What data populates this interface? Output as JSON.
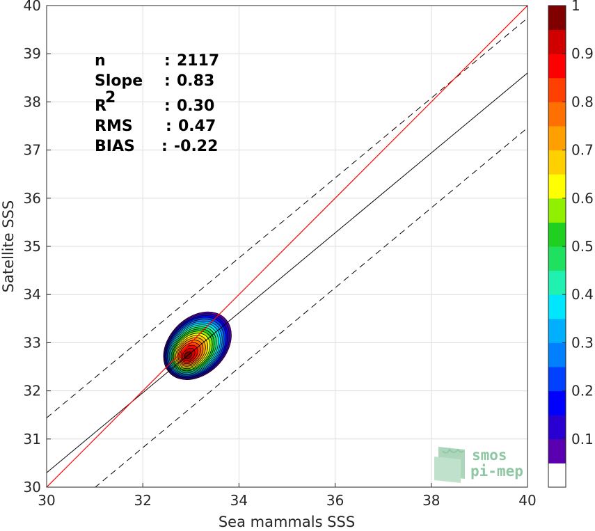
{
  "chart_data": {
    "type": "density-contour",
    "xlabel": "Sea mammals SSS",
    "ylabel": "Satellite SSS",
    "xlim": [
      30,
      40
    ],
    "ylim": [
      30,
      40
    ],
    "x_ticks": [
      "30",
      "32",
      "34",
      "36",
      "38",
      "40"
    ],
    "y_ticks": [
      "30",
      "31",
      "32",
      "33",
      "34",
      "35",
      "36",
      "37",
      "38",
      "39",
      "40"
    ],
    "grid": true,
    "stats": [
      {
        "label": "n",
        "sep": ": ",
        "value": "2117",
        "sup": ""
      },
      {
        "label": "Slope",
        "sep": ": ",
        "value": "0.83",
        "sup": ""
      },
      {
        "label": "R",
        "sup": "2",
        "sep": ": ",
        "value": "0.30"
      },
      {
        "label": "RMS",
        "sep": ": ",
        "value": "0.47",
        "sup": ""
      },
      {
        "label": "BIAS",
        "sep": ": ",
        "value": "-0.22",
        "sup": ""
      }
    ],
    "reference_line": {
      "slope": 1,
      "intercept": 0,
      "color": "#ff0000"
    },
    "fit_line": {
      "slope": 0.83,
      "intercept": 5.4,
      "color": "#000000"
    },
    "envelope_lines": [
      {
        "slope": 0.83,
        "intercept": 6.54,
        "style": "dashed"
      },
      {
        "slope": 0.83,
        "intercept": 4.26,
        "style": "dashed"
      }
    ],
    "density_peak": {
      "x": 33.0,
      "y": 32.8
    },
    "contour_levels": [
      0.05,
      0.1,
      0.15,
      0.2,
      0.25,
      0.3,
      0.35,
      0.4,
      0.45,
      0.5,
      0.55,
      0.6,
      0.65,
      0.7,
      0.75,
      0.8,
      0.85,
      0.9,
      0.95
    ],
    "colorbar": {
      "min": 0,
      "max": 1,
      "tick_labels": [
        "0.1",
        "0.2",
        "0.3",
        "0.4",
        "0.5",
        "0.6",
        "0.7",
        "0.8",
        "0.9",
        "1"
      ],
      "colors": [
        "#ffffff",
        "#5b00b0",
        "#2a00d0",
        "#0000ff",
        "#0040ff",
        "#0080ff",
        "#00b0ff",
        "#00e6ff",
        "#20f0b0",
        "#20e060",
        "#20d020",
        "#90f000",
        "#ffff00",
        "#ffd000",
        "#ffa000",
        "#ff7000",
        "#ff4000",
        "#ff0000",
        "#d00000",
        "#800000"
      ]
    }
  },
  "logo": {
    "line1": "smos",
    "line2": "pi-mep"
  }
}
